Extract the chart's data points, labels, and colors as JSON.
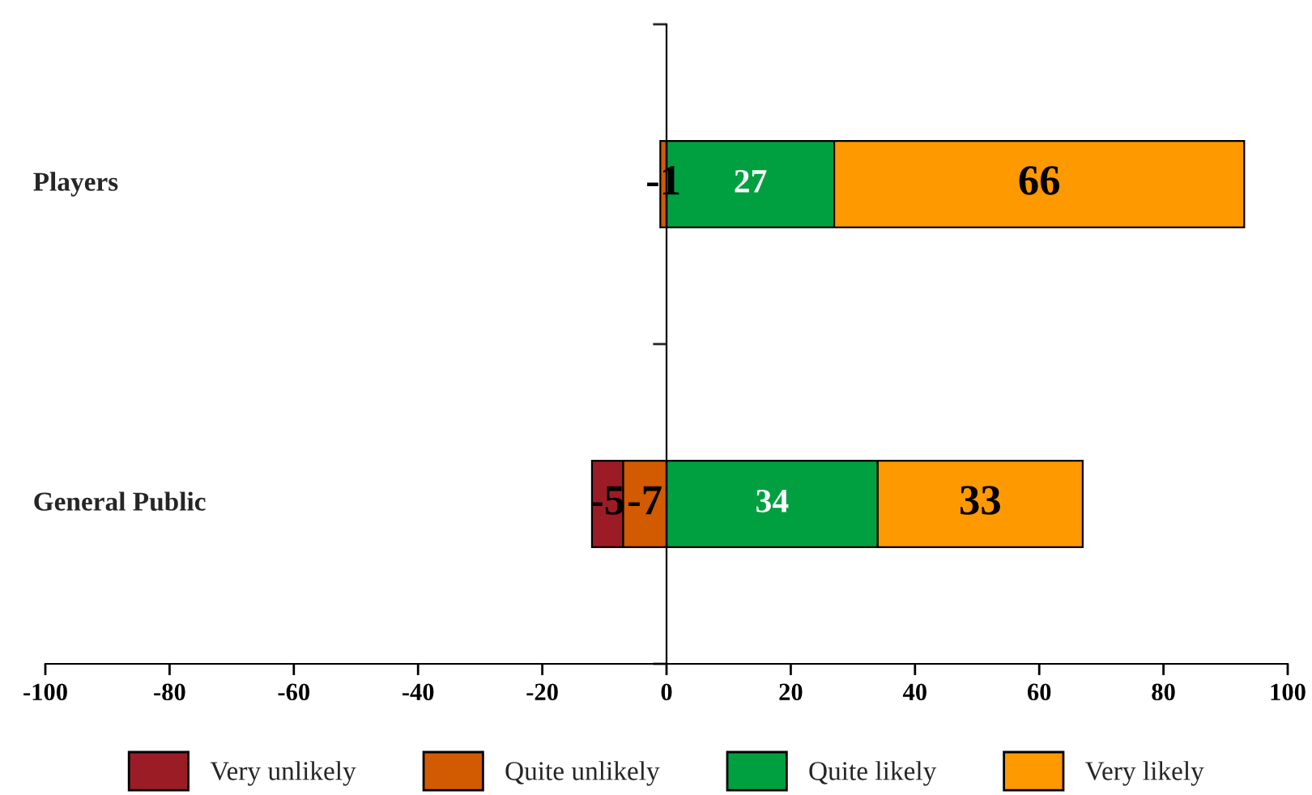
{
  "chart_data": {
    "type": "bar",
    "orientation": "horizontal",
    "stacked": true,
    "categories": [
      "Players",
      "General Public"
    ],
    "series": [
      {
        "name": "Very unlikely",
        "color": "#9b1c25",
        "values": [
          null,
          -5
        ],
        "value_labels": [
          null,
          "-5"
        ]
      },
      {
        "name": "Quite unlikely",
        "color": "#d25a00",
        "values": [
          -1,
          -7
        ],
        "value_labels": [
          "-1",
          "-7"
        ]
      },
      {
        "name": "Quite likely",
        "color": "#00a040",
        "values": [
          27,
          34
        ],
        "value_labels": [
          "27",
          "34"
        ]
      },
      {
        "name": "Very likely",
        "color": "#ff9900",
        "values": [
          66,
          33
        ],
        "value_labels": [
          "66",
          "33"
        ]
      }
    ],
    "xlim": [
      -100,
      100
    ],
    "xticks": [
      -100,
      -80,
      -60,
      -40,
      -20,
      0,
      20,
      40,
      60,
      80,
      100
    ],
    "legend": "bottom"
  }
}
